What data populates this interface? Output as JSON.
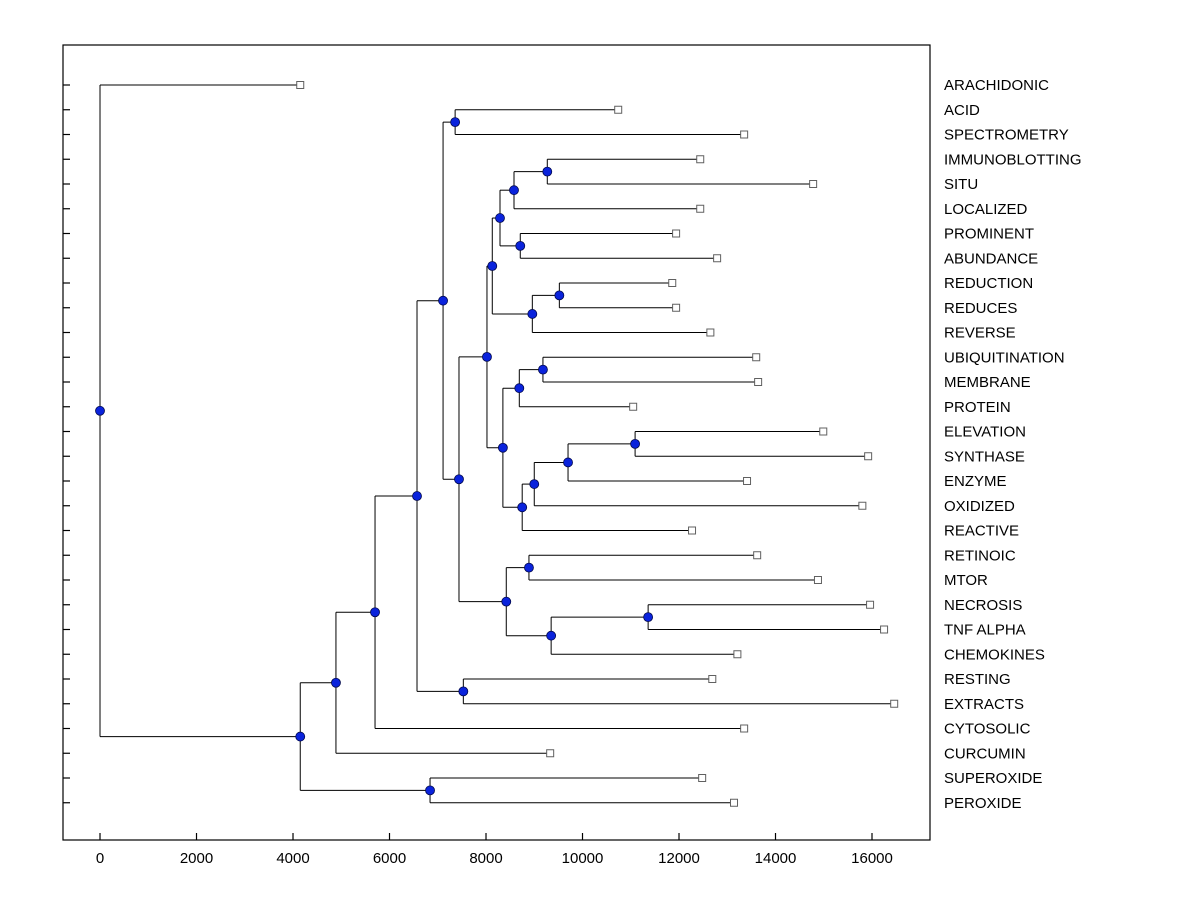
{
  "figure": {
    "background": "#FFFFFF"
  },
  "chart_data": {
    "type": "dendrogram",
    "orientation": "left-to-right",
    "title": "",
    "x_axis": {
      "ticks": [
        0,
        2000,
        4000,
        6000,
        8000,
        10000,
        12000,
        14000,
        16000
      ],
      "xlim": [
        -767,
        17202
      ]
    },
    "styles": {
      "branch_color": "#000000",
      "axes_color": "#000000",
      "leaf_marker": "open-square",
      "leaf_marker_stroke": "#606060",
      "leaf_marker_fill": "#FFFFFF",
      "node_marker": "filled-circle",
      "node_fill": "#0A23DC",
      "node_stroke": "#00084D",
      "background": "#FFFFFF"
    },
    "leaves": [
      {
        "label": "ARACHIDONIC",
        "value": 4150
      },
      {
        "label": "ACID",
        "value": 10740
      },
      {
        "label": "SPECTROMETRY",
        "value": 13350
      },
      {
        "label": "IMMUNOBLOTTING",
        "value": 12440
      },
      {
        "label": "SITU",
        "value": 14780
      },
      {
        "label": "LOCALIZED",
        "value": 12440
      },
      {
        "label": "PROMINENT",
        "value": 11940
      },
      {
        "label": "ABUNDANCE",
        "value": 12790
      },
      {
        "label": "REDUCTION",
        "value": 11860
      },
      {
        "label": "REDUCES",
        "value": 11940
      },
      {
        "label": "REVERSE",
        "value": 12650
      },
      {
        "label": "UBIQUITINATION",
        "value": 13600
      },
      {
        "label": "MEMBRANE",
        "value": 13640
      },
      {
        "label": "PROTEIN",
        "value": 11050
      },
      {
        "label": "ELEVATION",
        "value": 14990
      },
      {
        "label": "SYNTHASE",
        "value": 15920
      },
      {
        "label": "ENZYME",
        "value": 13410
      },
      {
        "label": "OXIDIZED",
        "value": 15800
      },
      {
        "label": "REACTIVE",
        "value": 12270
      },
      {
        "label": "RETINOIC",
        "value": 13620
      },
      {
        "label": "MTOR",
        "value": 14880
      },
      {
        "label": "NECROSIS",
        "value": 15960
      },
      {
        "label": "TNF ALPHA",
        "value": 16250
      },
      {
        "label": "CHEMOKINES",
        "value": 13210
      },
      {
        "label": "RESTING",
        "value": 12690
      },
      {
        "label": "EXTRACTS",
        "value": 16460
      },
      {
        "label": "CYTOSOLIC",
        "value": 13350
      },
      {
        "label": "CURCUMIN",
        "value": 9330
      },
      {
        "label": "SUPEROXIDE",
        "value": 12480
      },
      {
        "label": "PEROXIDE",
        "value": 13140
      }
    ],
    "internal_nodes": [
      {
        "id": "N0",
        "children": [
          "L3",
          "L4"
        ],
        "value": 9270
      },
      {
        "id": "N1",
        "children": [
          "N0",
          "L5"
        ],
        "value": 8580
      },
      {
        "id": "N2",
        "children": [
          "L6",
          "L7"
        ],
        "value": 8710
      },
      {
        "id": "N3",
        "children": [
          "N1",
          "N2"
        ],
        "value": 8290
      },
      {
        "id": "N4",
        "children": [
          "L8",
          "L9"
        ],
        "value": 9520
      },
      {
        "id": "N5",
        "children": [
          "N4",
          "L10"
        ],
        "value": 8960
      },
      {
        "id": "N6",
        "children": [
          "N3",
          "N5"
        ],
        "value": 8130
      },
      {
        "id": "N7",
        "children": [
          "L11",
          "L12"
        ],
        "value": 9180
      },
      {
        "id": "N8",
        "children": [
          "N7",
          "L13"
        ],
        "value": 8690
      },
      {
        "id": "N9",
        "children": [
          "L14",
          "L15"
        ],
        "value": 11090
      },
      {
        "id": "N10",
        "children": [
          "N9",
          "L16"
        ],
        "value": 9700
      },
      {
        "id": "N11",
        "children": [
          "N10",
          "L17"
        ],
        "value": 9000
      },
      {
        "id": "N12",
        "children": [
          "N11",
          "L18"
        ],
        "value": 8750
      },
      {
        "id": "N13",
        "children": [
          "N8",
          "N12"
        ],
        "value": 8350
      },
      {
        "id": "N14",
        "children": [
          "N6",
          "N13"
        ],
        "value": 8020
      },
      {
        "id": "N15",
        "children": [
          "L19",
          "L20"
        ],
        "value": 8890
      },
      {
        "id": "N16",
        "children": [
          "L21",
          "L22"
        ],
        "value": 11360
      },
      {
        "id": "N17",
        "children": [
          "N16",
          "L23"
        ],
        "value": 9350
      },
      {
        "id": "N18",
        "children": [
          "N15",
          "N17"
        ],
        "value": 8420
      },
      {
        "id": "N19",
        "children": [
          "N14",
          "N18"
        ],
        "value": 7440
      },
      {
        "id": "N20",
        "children": [
          "L1",
          "L2"
        ],
        "value": 7360
      },
      {
        "id": "N21",
        "children": [
          "N20",
          "N19"
        ],
        "value": 7110
      },
      {
        "id": "N22",
        "children": [
          "L24",
          "L25"
        ],
        "value": 7530
      },
      {
        "id": "N23",
        "children": [
          "N21",
          "N22"
        ],
        "value": 6570
      },
      {
        "id": "N24",
        "children": [
          "N23",
          "L26"
        ],
        "value": 5700
      },
      {
        "id": "N25",
        "children": [
          "N24",
          "L27"
        ],
        "value": 4890
      },
      {
        "id": "N26",
        "children": [
          "L28",
          "L29"
        ],
        "value": 6840
      },
      {
        "id": "N27",
        "children": [
          "N25",
          "N26"
        ],
        "value": 4150
      },
      {
        "id": "N28",
        "children": [
          "L0",
          "N27"
        ],
        "value": 0
      }
    ],
    "root": "N28"
  }
}
